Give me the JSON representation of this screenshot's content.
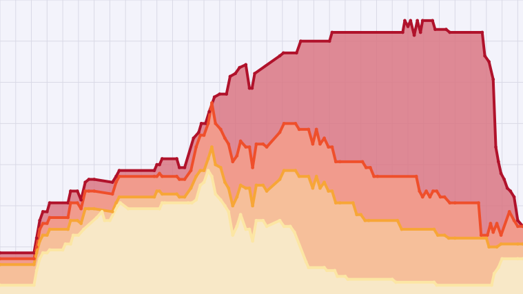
{
  "chart_data": {
    "type": "area",
    "stacked": false,
    "grid": true,
    "grid_color": "#d9d9e6",
    "background": "#f3f3fb",
    "xlim": [
      0,
      100
    ],
    "ylim": [
      0,
      100
    ],
    "series": [
      {
        "color": "#b0122b",
        "fill": "#d97683",
        "x": [
          0,
          6.5,
          7.0,
          7.6,
          8.2,
          9.0,
          9.5,
          13.0,
          13.5,
          14.8,
          15.5,
          16.3,
          17.0,
          18.0,
          21.5,
          22.2,
          22.8,
          29.5,
          30.0,
          30.5,
          31.0,
          33.8,
          34.3,
          35.3,
          37.0,
          38.0,
          38.5,
          39.3,
          40.0,
          41.0,
          42.0,
          43.3,
          44.0,
          45.0,
          45.8,
          47.0,
          47.7,
          48.2,
          48.7,
          53.5,
          54.2,
          56.7,
          57.5,
          63.0,
          63.5,
          77.0,
          77.4,
          78.0,
          78.5,
          79.2,
          79.8,
          80.4,
          80.8,
          82.7,
          83.2,
          85.3,
          86.0,
          92.2,
          92.7,
          93.5,
          94.3,
          94.8,
          95.3,
          95.8,
          96.4,
          97.0,
          97.6,
          98.3,
          99.0,
          100
        ],
        "y": [
          14,
          14,
          19,
          25,
          28,
          28,
          31,
          31,
          35,
          35,
          32,
          38,
          39,
          39,
          38,
          40,
          42,
          42,
          44,
          44,
          46,
          46,
          43,
          43,
          53,
          55,
          58,
          58,
          62,
          67,
          68,
          68,
          74,
          75,
          77,
          78,
          70,
          70,
          75,
          81,
          82,
          82,
          86,
          86,
          89,
          89,
          93,
          91,
          93,
          88,
          93,
          89,
          93,
          93,
          90,
          90,
          89,
          89,
          81,
          79,
          73,
          50,
          45,
          41,
          39,
          36,
          35,
          33,
          25,
          23
        ]
      },
      {
        "color": "#ef4f2b",
        "fill": "#f59f8c",
        "x": [
          0,
          6.5,
          7.0,
          7.6,
          8.2,
          9.0,
          9.5,
          13.0,
          13.5,
          14.8,
          15.5,
          16.3,
          17.0,
          18.0,
          21.5,
          22.2,
          22.8,
          29.5,
          30.0,
          30.5,
          31.0,
          33.8,
          34.3,
          35.3,
          36.5,
          37.5,
          38.3,
          39.0,
          39.8,
          40.5,
          41.2,
          42.2,
          43.0,
          43.7,
          44.5,
          45.3,
          46.0,
          47.0,
          47.7,
          48.3,
          49.0,
          50.3,
          51.0,
          53.5,
          54.3,
          56.5,
          57.2,
          59.0,
          59.8,
          60.5,
          61.2,
          62.0,
          62.8,
          63.5,
          64.2,
          65.0,
          69.3,
          70.0,
          70.8,
          71.5,
          72.2,
          79.6,
          80.2,
          80.8,
          81.5,
          82.2,
          82.8,
          83.5,
          84.2,
          85.0,
          86.0,
          87.0,
          91.5,
          92.0,
          93.2,
          93.8,
          94.3,
          95.0,
          95.8,
          97.4,
          98.3,
          99.0,
          100
        ],
        "y": [
          12,
          12,
          16,
          22,
          24,
          24,
          26,
          26,
          31,
          31,
          29,
          35,
          35,
          35,
          34,
          38,
          40,
          40,
          40,
          41,
          40,
          40,
          39,
          39,
          42,
          50,
          54,
          54,
          58,
          65,
          58,
          56,
          53,
          51,
          45,
          47,
          52,
          50,
          50,
          43,
          51,
          51,
          50,
          55,
          58,
          58,
          56,
          56,
          51,
          56,
          51,
          53,
          50,
          50,
          45,
          45,
          45,
          43,
          43,
          40,
          40,
          40,
          35,
          33,
          35,
          33,
          35,
          35,
          33,
          33,
          31,
          31,
          31,
          20,
          20,
          24,
          21,
          24,
          20,
          28,
          25,
          23,
          23
        ]
      },
      {
        "color": "#f7a637",
        "fill": "#f7c59c",
        "x": [
          0,
          6.5,
          7.0,
          7.6,
          8.2,
          9.0,
          9.5,
          13.0,
          13.5,
          14.8,
          15.5,
          16.3,
          17.0,
          18.0,
          21.5,
          22.2,
          22.8,
          29.5,
          30.0,
          30.5,
          31.0,
          33.8,
          34.3,
          35.3,
          36.5,
          37.5,
          38.3,
          39.0,
          39.8,
          40.5,
          41.2,
          42.2,
          43.0,
          43.7,
          44.5,
          45.3,
          46.0,
          47.0,
          47.7,
          48.3,
          49.0,
          50.3,
          51.0,
          53.5,
          54.3,
          56.5,
          57.2,
          59.0,
          59.8,
          60.5,
          61.2,
          62.0,
          62.8,
          63.5,
          64.2,
          65.0,
          67.5,
          68.2,
          69.0,
          69.8,
          70.5,
          76.0,
          76.8,
          83.0,
          83.7,
          85.0,
          85.8,
          87.0,
          93.0,
          93.5,
          95.0,
          95.8,
          99.0,
          100
        ],
        "y": [
          10,
          10,
          14,
          18,
          20,
          20,
          22,
          22,
          25,
          25,
          24,
          29,
          29,
          29,
          28,
          31,
          33,
          33,
          35,
          35,
          34,
          34,
          33,
          33,
          36,
          40,
          42,
          42,
          46,
          50,
          44,
          43,
          38,
          36,
          30,
          33,
          37,
          36,
          36,
          30,
          37,
          37,
          35,
          39,
          42,
          42,
          40,
          40,
          36,
          40,
          36,
          38,
          35,
          35,
          31,
          31,
          31,
          27,
          27,
          25,
          25,
          25,
          22,
          22,
          20,
          20,
          19,
          19,
          19,
          16,
          16,
          17,
          17,
          17
        ]
      },
      {
        "color": "#fce6a4",
        "fill": "#f8efcf",
        "x": [
          0,
          6.5,
          7.0,
          7.6,
          8.2,
          9.0,
          9.5,
          12.0,
          12.5,
          13.5,
          14.0,
          15.0,
          16.0,
          18.5,
          19.5,
          20.0,
          21.0,
          22.5,
          23.0,
          24.5,
          30.5,
          31.0,
          31.5,
          36.0,
          36.7,
          37.5,
          38.3,
          39.0,
          39.8,
          40.5,
          41.2,
          42.2,
          43.0,
          43.7,
          44.5,
          45.3,
          46.0,
          47.0,
          47.7,
          48.3,
          49.0,
          50.3,
          51.0,
          53.5,
          54.3,
          55.5,
          56.3,
          58.5,
          59.0,
          62.0,
          62.5,
          64.0,
          64.5,
          66.0,
          66.5,
          75.0,
          75.7,
          83.0,
          83.5,
          94.0,
          94.5,
          95.3,
          96.0,
          99.0,
          100
        ],
        "y": [
          3,
          3,
          8,
          12,
          14,
          14,
          15,
          15,
          17,
          17,
          20,
          20,
          22,
          26,
          28,
          25,
          25,
          30,
          31,
          29,
          29,
          31,
          31,
          31,
          31,
          32,
          37,
          38,
          42,
          40,
          34,
          32,
          30,
          28,
          20,
          23,
          27,
          22,
          22,
          18,
          25,
          25,
          23,
          25,
          23,
          23,
          21,
          11,
          9,
          9,
          8,
          8,
          6,
          6,
          5,
          5,
          4,
          4,
          3,
          3,
          7,
          9,
          12,
          12,
          12
        ]
      }
    ]
  }
}
